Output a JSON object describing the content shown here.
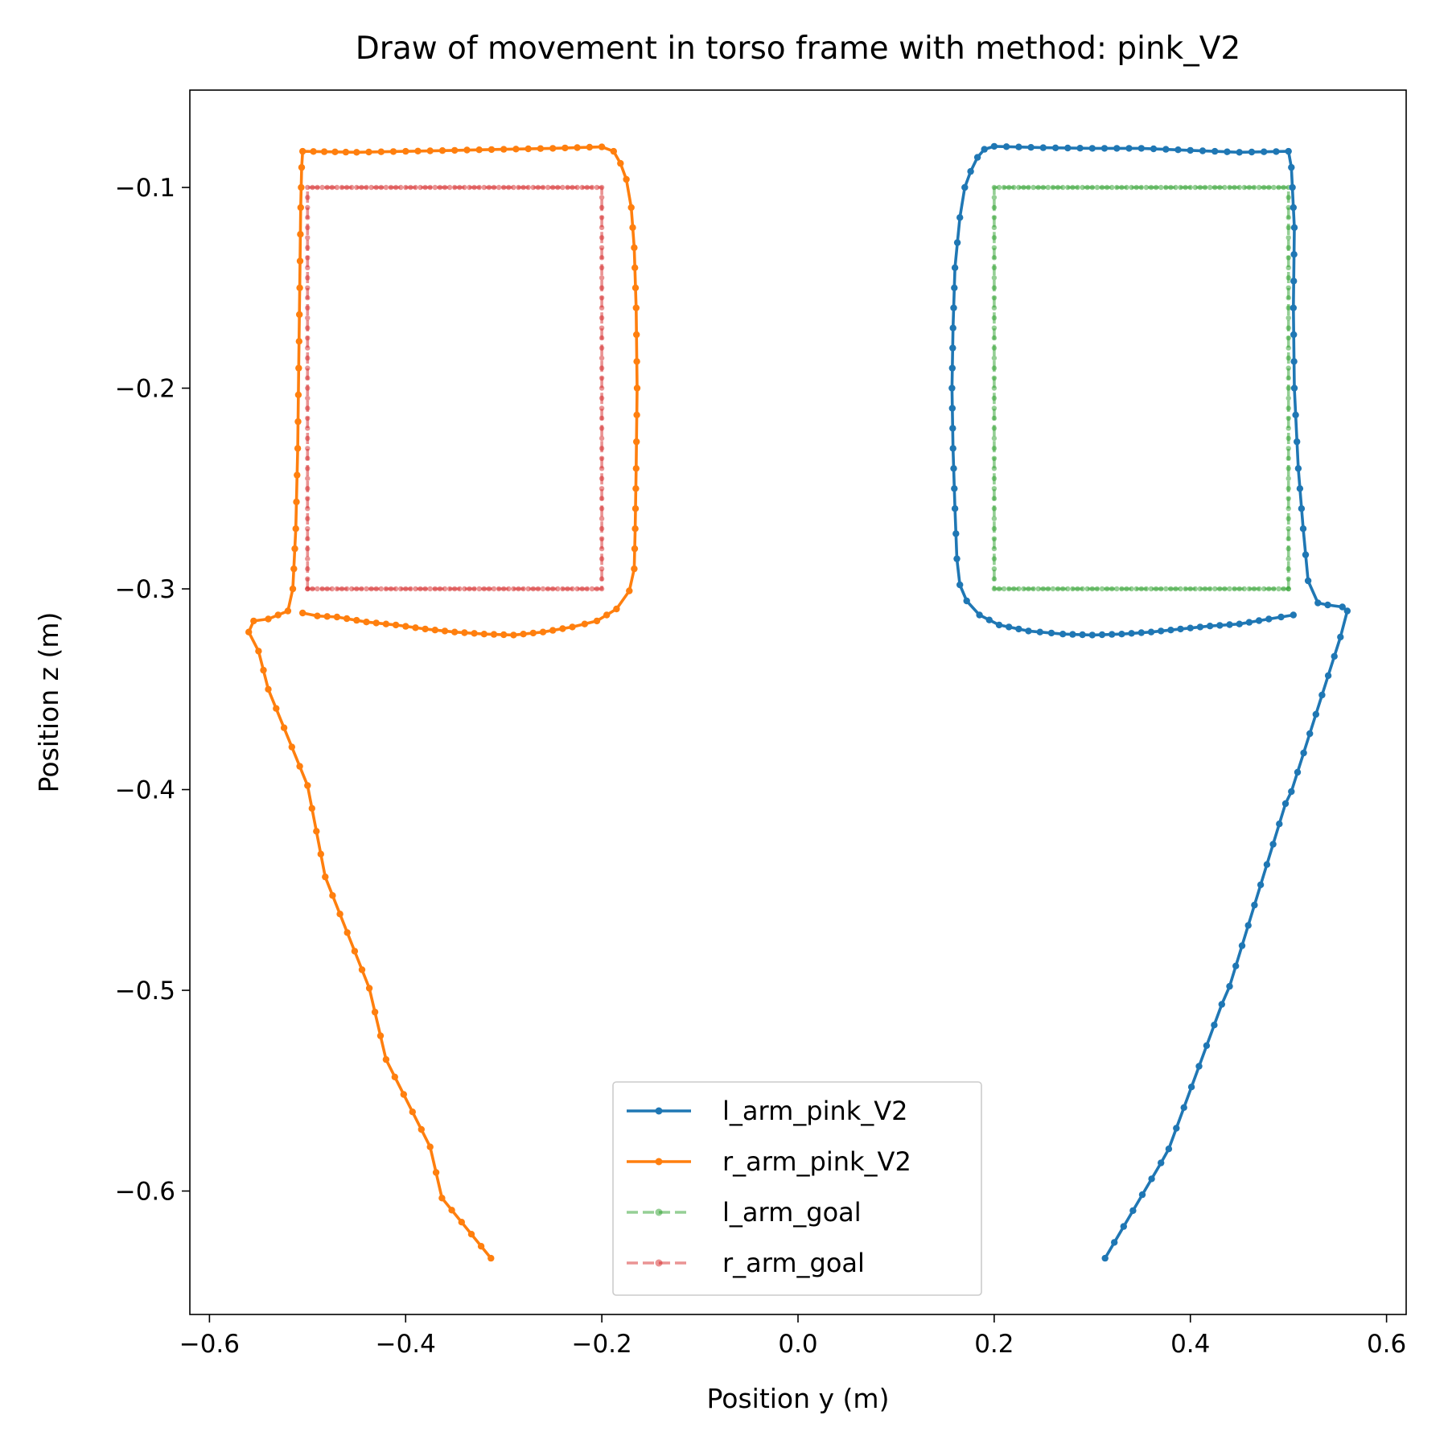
{
  "chart_data": {
    "type": "line",
    "title": "Draw of movement in torso frame with method: pink_V2",
    "xlabel": "Position y (m)",
    "ylabel": "Position z (m)",
    "xlim": [
      -0.62,
      0.62
    ],
    "ylim": [
      -0.6615,
      -0.0515
    ],
    "x_ticks": [
      -0.6,
      -0.4,
      -0.2,
      0.0,
      0.2,
      0.4,
      0.6
    ],
    "x_tick_labels": [
      "−0.6",
      "−0.4",
      "−0.2",
      "0.0",
      "0.2",
      "0.4",
      "0.6"
    ],
    "y_ticks": [
      -0.1,
      -0.2,
      -0.3,
      -0.4,
      -0.5,
      -0.6
    ],
    "y_tick_labels": [
      "−0.1",
      "−0.2",
      "−0.3",
      "−0.4",
      "−0.5",
      "−0.6"
    ],
    "grid": false,
    "legend_position": "bottom-center",
    "series": [
      {
        "name": "l_arm_pink_V2",
        "color": "#1f77b4",
        "style": "solid",
        "marker": "dot",
        "points": [
          [
            0.313,
            -0.6335
          ],
          [
            0.37,
            -0.586
          ],
          [
            0.378,
            -0.579
          ],
          [
            0.432,
            -0.507
          ],
          [
            0.44,
            -0.498
          ],
          [
            0.497,
            -0.407
          ],
          [
            0.503,
            -0.401
          ],
          [
            0.553,
            -0.324
          ],
          [
            0.56,
            -0.311
          ],
          [
            0.555,
            -0.309
          ],
          [
            0.54,
            -0.308
          ],
          [
            0.53,
            -0.307
          ],
          [
            0.52,
            -0.296
          ],
          [
            0.515,
            -0.27
          ],
          [
            0.51,
            -0.24
          ],
          [
            0.506,
            -0.2
          ],
          [
            0.505,
            -0.16
          ],
          [
            0.506,
            -0.12
          ],
          [
            0.503,
            -0.09
          ],
          [
            0.5,
            -0.082
          ],
          [
            0.45,
            -0.0825
          ],
          [
            0.4,
            -0.0815
          ],
          [
            0.35,
            -0.0805
          ],
          [
            0.3,
            -0.0805
          ],
          [
            0.25,
            -0.0802
          ],
          [
            0.2,
            -0.0795
          ],
          [
            0.19,
            -0.081
          ],
          [
            0.183,
            -0.085
          ],
          [
            0.176,
            -0.092
          ],
          [
            0.17,
            -0.1
          ],
          [
            0.165,
            -0.115
          ],
          [
            0.16,
            -0.14
          ],
          [
            0.158,
            -0.17
          ],
          [
            0.157,
            -0.2
          ],
          [
            0.158,
            -0.23
          ],
          [
            0.16,
            -0.26
          ],
          [
            0.162,
            -0.285
          ],
          [
            0.165,
            -0.298
          ],
          [
            0.172,
            -0.306
          ],
          [
            0.185,
            -0.313
          ],
          [
            0.205,
            -0.318
          ],
          [
            0.235,
            -0.321
          ],
          [
            0.27,
            -0.3225
          ],
          [
            0.3,
            -0.323
          ],
          [
            0.33,
            -0.3225
          ],
          [
            0.36,
            -0.3215
          ],
          [
            0.39,
            -0.32
          ],
          [
            0.42,
            -0.3185
          ],
          [
            0.45,
            -0.3175
          ],
          [
            0.48,
            -0.315
          ],
          [
            0.505,
            -0.313
          ]
        ]
      },
      {
        "name": "r_arm_pink_V2",
        "color": "#ff7f0e",
        "style": "solid",
        "marker": "dot",
        "points": [
          [
            -0.313,
            -0.6335
          ],
          [
            -0.363,
            -0.6035
          ],
          [
            -0.375,
            -0.578
          ],
          [
            -0.42,
            -0.5345
          ],
          [
            -0.437,
            -0.499
          ],
          [
            -0.482,
            -0.4435
          ],
          [
            -0.5,
            -0.398
          ],
          [
            -0.54,
            -0.35
          ],
          [
            -0.55,
            -0.331
          ],
          [
            -0.56,
            -0.3215
          ],
          [
            -0.555,
            -0.316
          ],
          [
            -0.54,
            -0.315
          ],
          [
            -0.52,
            -0.311
          ],
          [
            -0.515,
            -0.3
          ],
          [
            -0.512,
            -0.27
          ],
          [
            -0.51,
            -0.23
          ],
          [
            -0.509,
            -0.19
          ],
          [
            -0.508,
            -0.15
          ],
          [
            -0.507,
            -0.11
          ],
          [
            -0.506,
            -0.09
          ],
          [
            -0.505,
            -0.082
          ],
          [
            -0.45,
            -0.0825
          ],
          [
            -0.4,
            -0.082
          ],
          [
            -0.35,
            -0.0815
          ],
          [
            -0.3,
            -0.081
          ],
          [
            -0.25,
            -0.0805
          ],
          [
            -0.2,
            -0.0798
          ],
          [
            -0.188,
            -0.082
          ],
          [
            -0.181,
            -0.088
          ],
          [
            -0.175,
            -0.096
          ],
          [
            -0.17,
            -0.11
          ],
          [
            -0.167,
            -0.13
          ],
          [
            -0.165,
            -0.16
          ],
          [
            -0.164,
            -0.2
          ],
          [
            -0.165,
            -0.24
          ],
          [
            -0.166,
            -0.27
          ],
          [
            -0.167,
            -0.29
          ],
          [
            -0.172,
            -0.301
          ],
          [
            -0.185,
            -0.31
          ],
          [
            -0.205,
            -0.316
          ],
          [
            -0.23,
            -0.319
          ],
          [
            -0.26,
            -0.3215
          ],
          [
            -0.29,
            -0.323
          ],
          [
            -0.32,
            -0.3225
          ],
          [
            -0.35,
            -0.3215
          ],
          [
            -0.38,
            -0.32
          ],
          [
            -0.41,
            -0.318
          ],
          [
            -0.44,
            -0.3165
          ],
          [
            -0.47,
            -0.314
          ],
          [
            -0.49,
            -0.3135
          ],
          [
            -0.505,
            -0.312
          ]
        ]
      },
      {
        "name": "l_arm_goal",
        "color": "#2ca02c",
        "style": "dashed",
        "marker": "dot",
        "alpha": 0.5,
        "points": [
          [
            0.5,
            -0.3
          ],
          [
            0.5,
            -0.1
          ],
          [
            0.2,
            -0.1
          ],
          [
            0.2,
            -0.3
          ],
          [
            0.5,
            -0.3
          ]
        ]
      },
      {
        "name": "r_arm_goal",
        "color": "#d62728",
        "style": "dashed",
        "marker": "dot",
        "alpha": 0.5,
        "points": [
          [
            -0.5,
            -0.3
          ],
          [
            -0.5,
            -0.1
          ],
          [
            -0.2,
            -0.1
          ],
          [
            -0.2,
            -0.3
          ],
          [
            -0.5,
            -0.3
          ]
        ]
      }
    ]
  }
}
